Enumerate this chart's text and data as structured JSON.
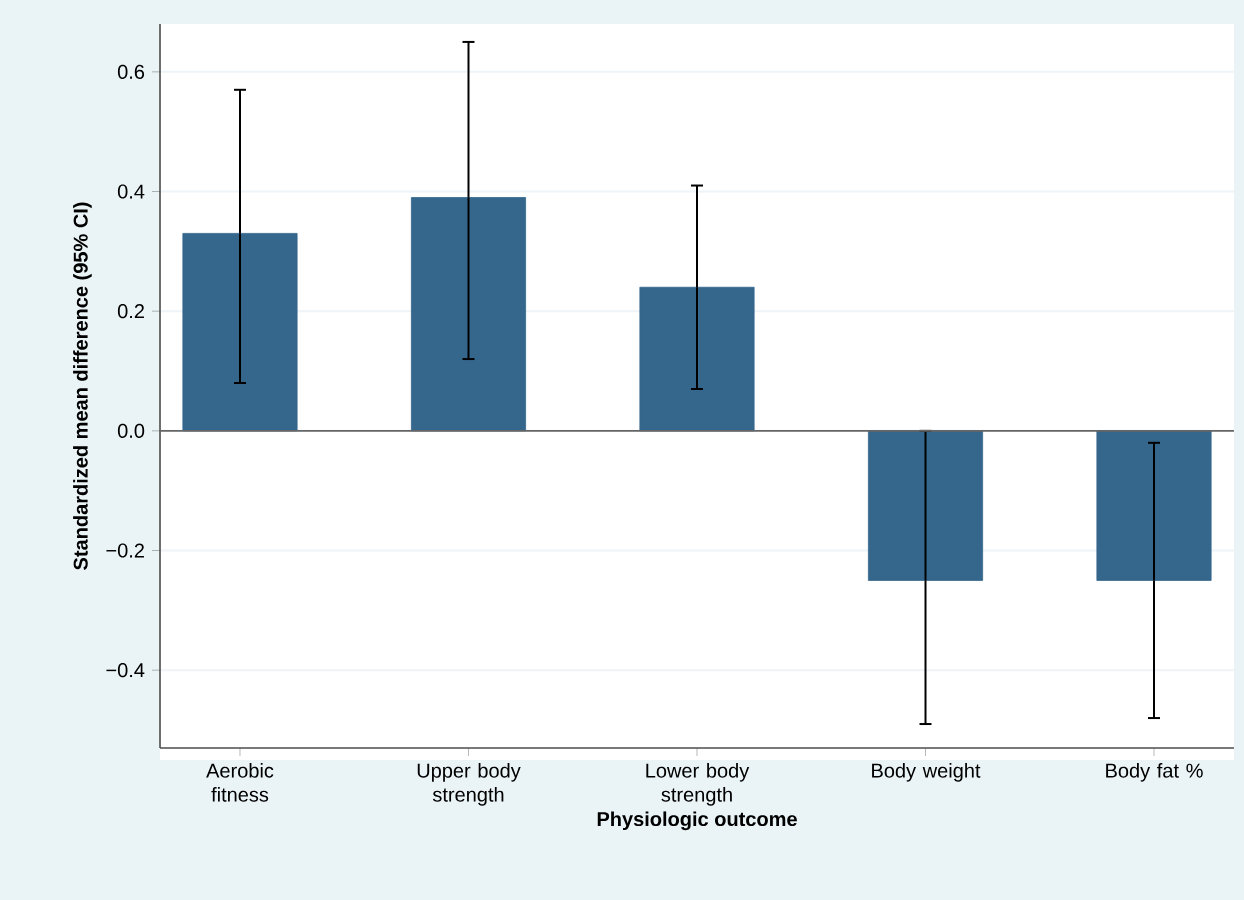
{
  "chart_data": {
    "type": "bar",
    "xlabel": "Physiologic outcome",
    "ylabel": "Standardized mean difference (95% CI)",
    "categories": [
      "Aerobic fitness",
      "Upper body strength",
      "Lower body strength",
      "Body weight",
      "Body fat %"
    ],
    "values": [
      0.33,
      0.39,
      0.24,
      -0.25,
      -0.25
    ],
    "color": "#35668c",
    "errors": [
      [
        0.08,
        0.57
      ],
      [
        0.12,
        0.65
      ],
      [
        0.07,
        0.41
      ],
      [
        -0.49,
        0.0
      ],
      [
        -0.48,
        -0.02
      ]
    ],
    "ylim": [
      -0.53,
      0.68
    ],
    "yticks": [
      {
        "value": -0.4,
        "label": "−0.4"
      },
      {
        "value": -0.2,
        "label": "−0.2"
      },
      {
        "value": 0,
        "label": "0.0"
      },
      {
        "value": 0.2,
        "label": "0.2"
      },
      {
        "value": 0.4,
        "label": "0.4"
      },
      {
        "value": 0.6,
        "label": "0.6"
      }
    ],
    "grid": "y",
    "ref_lines": [
      {
        "axis": "y",
        "value": 0
      }
    ]
  }
}
